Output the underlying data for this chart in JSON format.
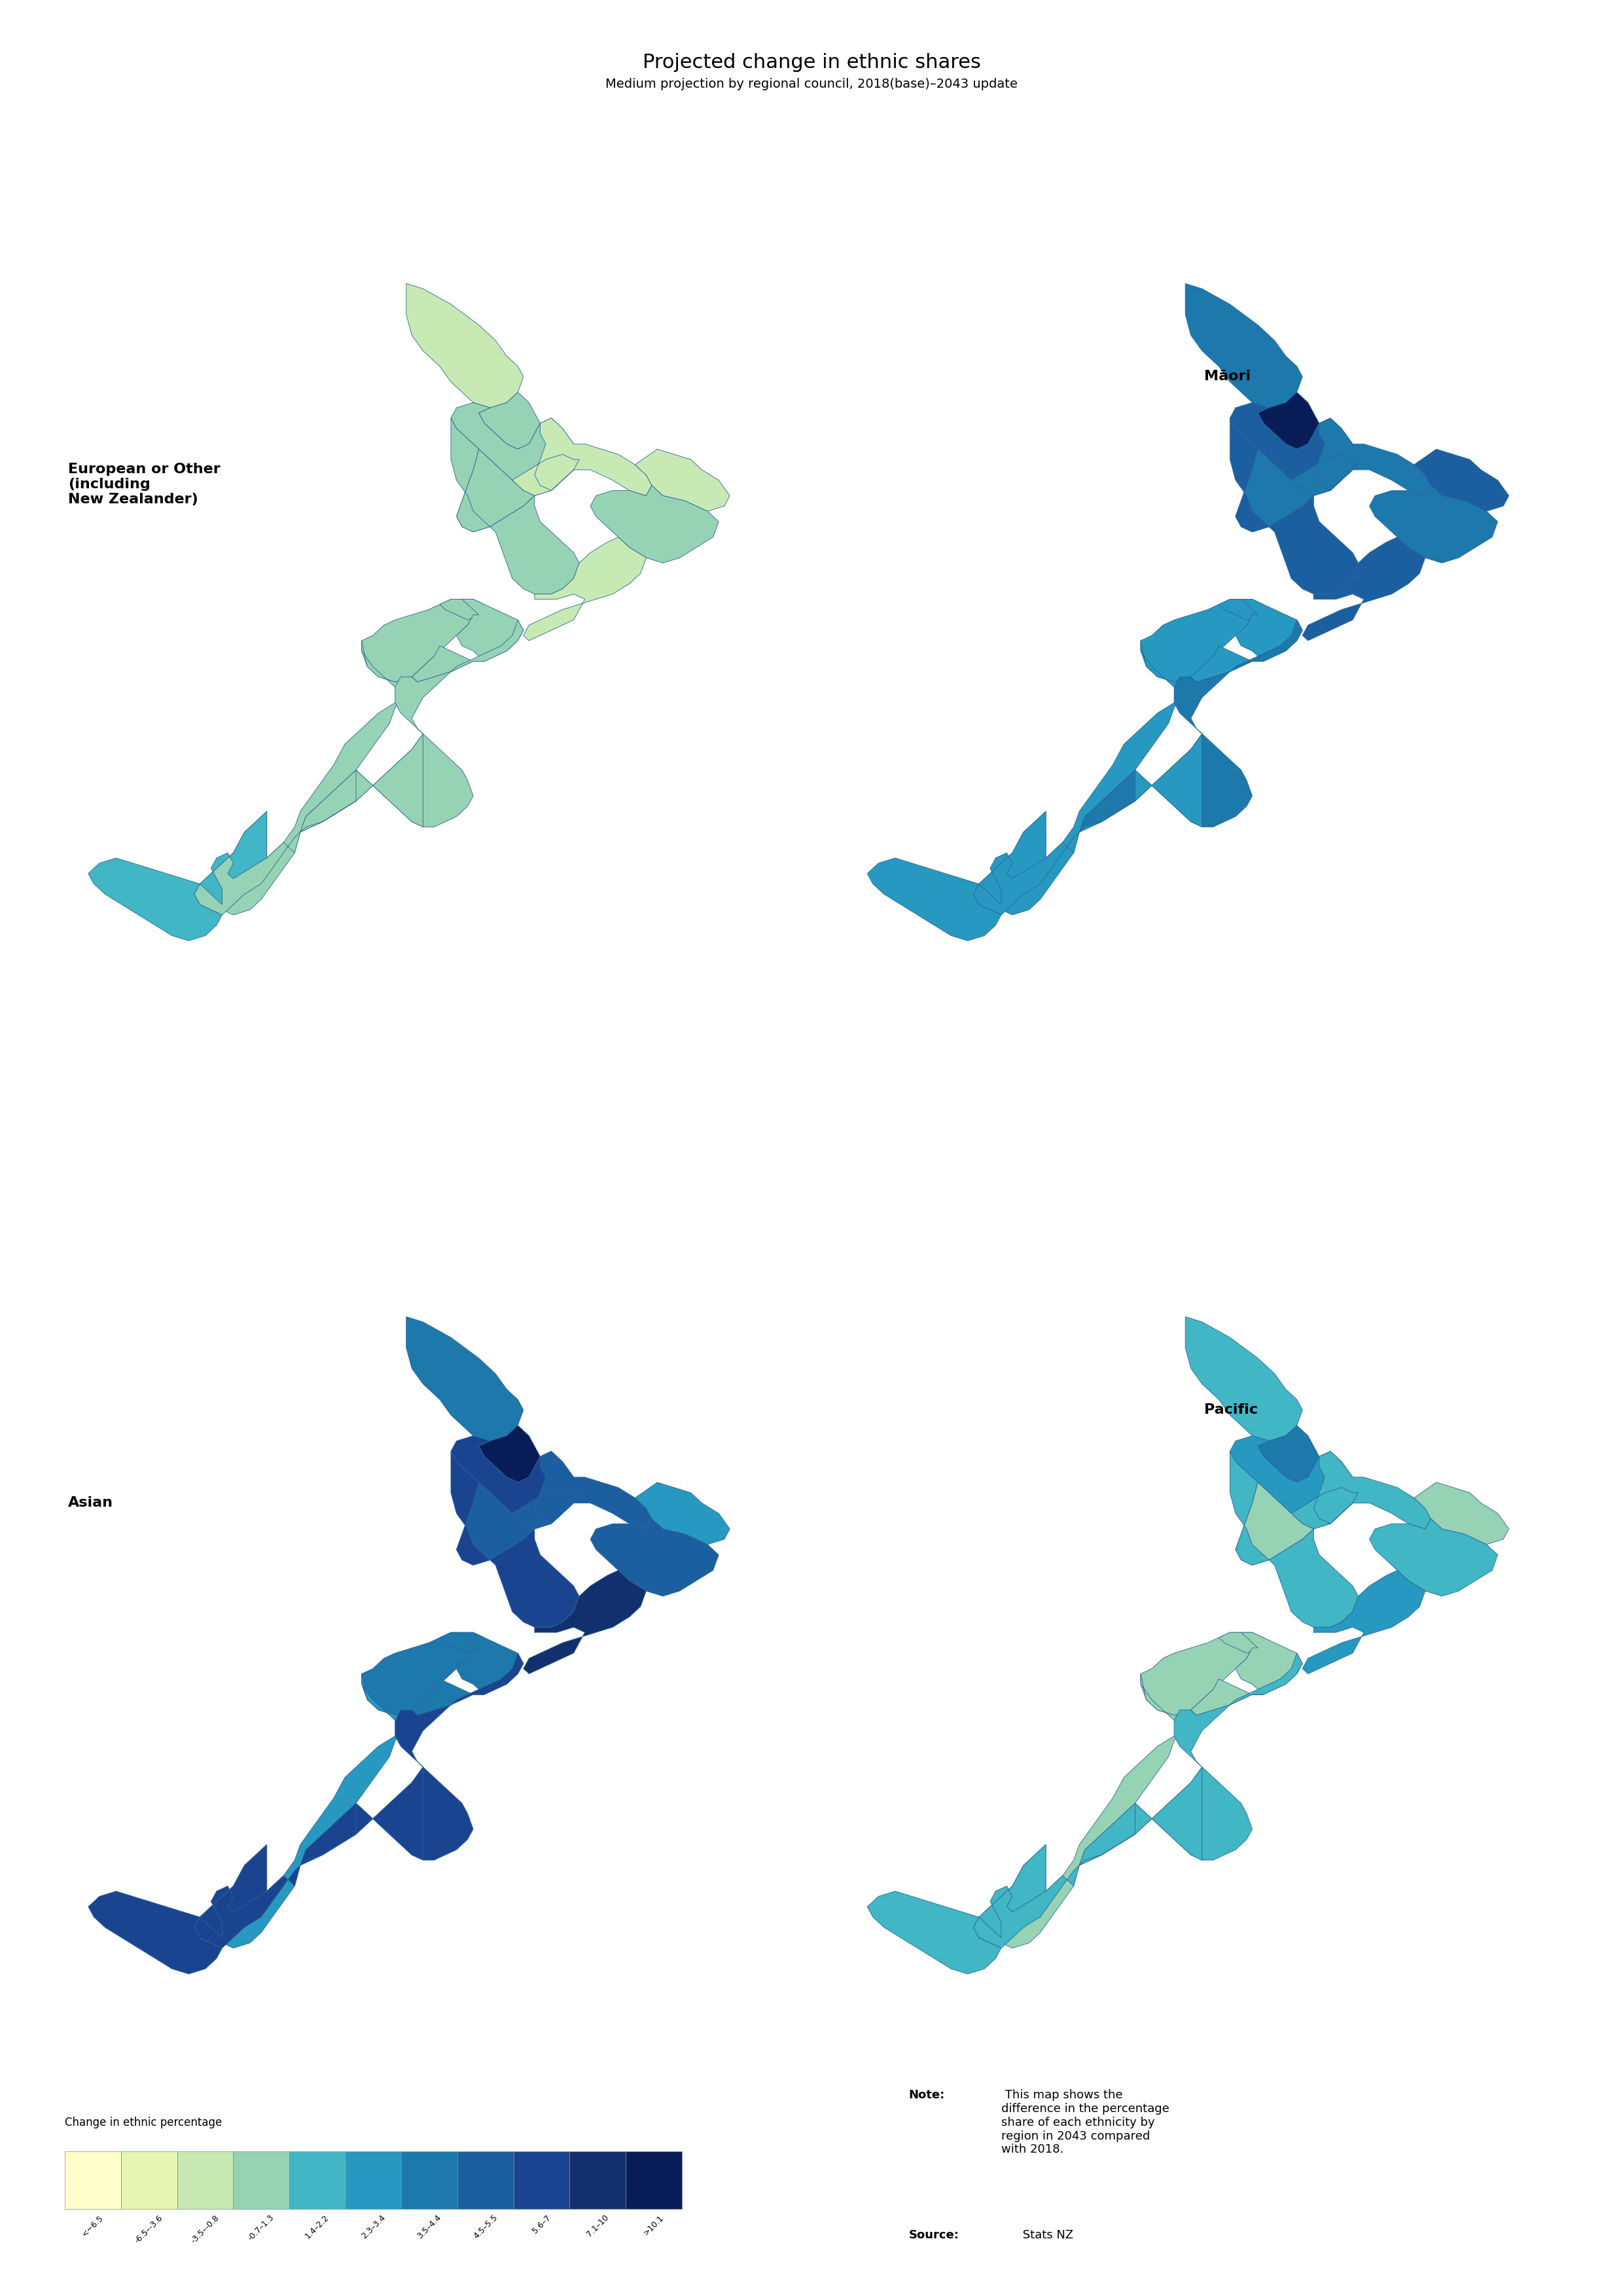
{
  "title": "Projected change in ethnic shares",
  "subtitle": "Medium projection by regional council, 2018(base)–2043 update",
  "colorbar_title": "Change in ethnic percentage",
  "legend_labels": [
    "<−6.5",
    "-6.5–-3.6",
    "-3.5–-0.8",
    "-0.7–1.3",
    "1.4–2.2",
    "2.3–3.4",
    "3.5–4.4",
    "4.5–5.5",
    "5.6–7",
    "7.1–10",
    ">10.1"
  ],
  "legend_colors": [
    "#ffffcc",
    "#e6f5b0",
    "#c7e9b4",
    "#96d2b4",
    "#41b6c4",
    "#2799c0",
    "#1d78ab",
    "#1c5fa0",
    "#1a4490",
    "#12306e",
    "#081d58"
  ],
  "panel_labels": [
    "European or Other\n(including\nNew Zealander)",
    "Māori",
    "Asian",
    "Pacific"
  ],
  "note_bold": "Note:",
  "note_rest": " This map shows the\ndifference in the percentage\nshare of each ethnicity by\nregion in 2043 compared\nwith 2018.",
  "source_bold": "Source:",
  "source_rest": " Stats NZ",
  "background_color": "#ffffff",
  "title_fontsize": 22,
  "subtitle_fontsize": 14,
  "panel_label_fontsize": 16,
  "legend_fontsize": 10,
  "note_fontsize": 13,
  "euro_colors": {
    "Northland": 2,
    "Auckland": 3,
    "Waikato": 3,
    "BayOfPlenty": 2,
    "Gisborne": 2,
    "HawkesBay": 3,
    "Taranaki": 3,
    "ManawatuWhanganui": 3,
    "Wellington": 2,
    "Tasman": 3,
    "Nelson": 3,
    "Marlborough": 3,
    "WestCoast": 3,
    "Canterbury": 3,
    "Otago": 3,
    "Southland": 4
  },
  "maori_colors": {
    "Northland": 6,
    "Auckland": 10,
    "Waikato": 7,
    "BayOfPlenty": 6,
    "Gisborne": 7,
    "HawkesBay": 6,
    "Taranaki": 6,
    "ManawatuWhanganui": 7,
    "Wellington": 7,
    "Tasman": 5,
    "Nelson": 5,
    "Marlborough": 5,
    "WestCoast": 5,
    "Canterbury": 6,
    "Otago": 5,
    "Southland": 5
  },
  "asian_colors": {
    "Northland": 6,
    "Auckland": 10,
    "Waikato": 8,
    "BayOfPlenty": 7,
    "Gisborne": 5,
    "HawkesBay": 7,
    "Taranaki": 7,
    "ManawatuWhanganui": 8,
    "Wellington": 9,
    "Tasman": 6,
    "Nelson": 6,
    "Marlborough": 6,
    "WestCoast": 5,
    "Canterbury": 8,
    "Otago": 8,
    "Southland": 8
  },
  "pacific_colors": {
    "Northland": 4,
    "Auckland": 6,
    "Waikato": 5,
    "BayOfPlenty": 4,
    "Gisborne": 3,
    "HawkesBay": 4,
    "Taranaki": 3,
    "ManawatuWhanganui": 4,
    "Wellington": 5,
    "Tasman": 3,
    "Nelson": 3,
    "Marlborough": 3,
    "WestCoast": 3,
    "Canterbury": 4,
    "Otago": 4,
    "Southland": 4
  }
}
